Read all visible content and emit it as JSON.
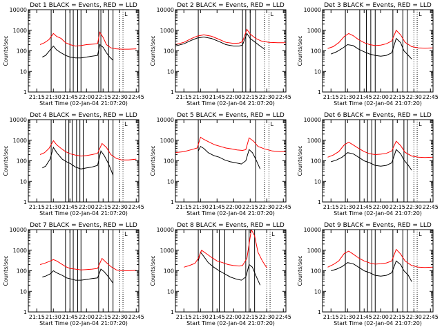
{
  "shared": {
    "xlabel": "Start Time (02-Jan-04 21:07:20)",
    "ylabel": "Counts/sec",
    "x_ticks": [
      "21:15",
      "21:30",
      "21:45",
      "22:00",
      "22:15",
      "22:30",
      "22:45"
    ],
    "y_ticks": [
      "1",
      "10",
      "100",
      "1000",
      "10000"
    ],
    "ylim": [
      1,
      10000
    ],
    "y_scale": "log",
    "xlim": [
      "21:07:20",
      "22:47:20"
    ],
    "marker_label": "L",
    "colors": {
      "events": "#000000",
      "lld": "#ff0000",
      "frame": "#000000"
    }
  },
  "chart_data": [
    {
      "type": "line",
      "title": "Det 1 BLACK = Events, RED = LLD",
      "dashed_markers": [
        "22:30",
        "22:33"
      ],
      "solid_markers": [
        "21:28",
        "21:41",
        "21:45",
        "21:48",
        "21:52",
        "21:55",
        "22:11",
        "22:13",
        "22:20",
        "22:24"
      ],
      "series": [
        {
          "key": "events",
          "x": [
            "21:20",
            "21:23",
            "21:27",
            "21:30",
            "21:33",
            "21:37",
            "21:41",
            "21:45",
            "21:50",
            "21:55",
            "22:00",
            "22:05",
            "22:10",
            "22:12",
            "22:15",
            "22:18",
            "22:21",
            "22:24"
          ],
          "values": [
            50,
            60,
            110,
            170,
            110,
            80,
            60,
            50,
            45,
            45,
            50,
            55,
            60,
            200,
            150,
            80,
            50,
            35
          ]
        },
        {
          "key": "lld",
          "x": [
            "21:18",
            "21:22",
            "21:26",
            "21:30",
            "21:33",
            "21:37",
            "21:41",
            "21:45",
            "21:50",
            "21:55",
            "22:00",
            "22:05",
            "22:10",
            "22:12",
            "22:15",
            "22:18",
            "22:22",
            "22:27",
            "22:32",
            "22:38",
            "22:45"
          ],
          "values": [
            200,
            250,
            350,
            700,
            500,
            400,
            250,
            200,
            170,
            180,
            200,
            210,
            220,
            800,
            450,
            200,
            140,
            125,
            120,
            120,
            125
          ]
        }
      ]
    },
    {
      "type": "line",
      "title": "Det 2 BLACK = Events, RED = LLD",
      "dashed_markers": [
        "22:28",
        "22:32"
      ],
      "solid_markers": [
        "21:28",
        "22:08",
        "22:11",
        "22:15",
        "22:20"
      ],
      "series": [
        {
          "key": "events",
          "x": [
            "21:07",
            "21:15",
            "21:22",
            "21:27",
            "21:33",
            "21:40",
            "21:47",
            "21:53",
            "22:00",
            "22:05",
            "22:08",
            "22:12",
            "22:15",
            "22:20",
            "22:24",
            "22:28"
          ],
          "values": [
            170,
            220,
            330,
            420,
            470,
            400,
            280,
            200,
            170,
            170,
            190,
            700,
            400,
            250,
            170,
            120
          ]
        },
        {
          "key": "lld",
          "x": [
            "21:07",
            "21:15",
            "21:22",
            "21:27",
            "21:33",
            "21:40",
            "21:47",
            "21:53",
            "22:00",
            "22:05",
            "22:08",
            "22:12",
            "22:15",
            "22:20",
            "22:25",
            "22:32",
            "22:40",
            "22:47"
          ],
          "values": [
            200,
            260,
            400,
            520,
            600,
            510,
            360,
            260,
            230,
            240,
            280,
            1100,
            650,
            400,
            300,
            260,
            250,
            250
          ]
        }
      ]
    },
    {
      "type": "line",
      "title": "Det 3 BLACK = Events, RED = LLD",
      "dashed_markers": [
        "22:30",
        "22:33"
      ],
      "solid_markers": [
        "21:28",
        "21:41",
        "21:47",
        "21:51",
        "21:55",
        "22:11",
        "22:20",
        "22:24"
      ],
      "series": [
        {
          "key": "events",
          "x": [
            "21:15",
            "21:20",
            "21:25",
            "21:30",
            "21:35",
            "21:40",
            "21:45",
            "21:50",
            "21:55",
            "22:00",
            "22:05",
            "22:10",
            "22:14",
            "22:18",
            "22:21",
            "22:25",
            "22:28"
          ],
          "values": [
            70,
            90,
            130,
            200,
            180,
            120,
            90,
            70,
            60,
            55,
            60,
            80,
            400,
            250,
            100,
            60,
            40
          ]
        },
        {
          "key": "lld",
          "x": [
            "21:12",
            "21:17",
            "21:22",
            "21:27",
            "21:31",
            "21:35",
            "21:40",
            "21:45",
            "21:50",
            "21:55",
            "22:00",
            "22:05",
            "22:10",
            "22:14",
            "22:18",
            "22:22",
            "22:28",
            "22:34",
            "22:40",
            "22:47"
          ],
          "values": [
            130,
            160,
            250,
            500,
            700,
            550,
            350,
            250,
            200,
            180,
            190,
            220,
            300,
            1000,
            600,
            260,
            160,
            140,
            135,
            140
          ]
        }
      ]
    },
    {
      "type": "line",
      "title": "Det 4 BLACK = Events, RED = LLD",
      "dashed_markers": [
        "22:30",
        "22:33"
      ],
      "solid_markers": [
        "21:28",
        "21:41",
        "21:44",
        "21:47",
        "21:51",
        "21:54",
        "21:57",
        "22:11",
        "22:20",
        "22:24"
      ],
      "series": [
        {
          "key": "events",
          "x": [
            "21:20",
            "21:23",
            "21:27",
            "21:30",
            "21:33",
            "21:38",
            "21:42",
            "21:46",
            "21:50",
            "21:55",
            "22:00",
            "22:05",
            "22:10",
            "22:13",
            "22:16",
            "22:20",
            "22:24"
          ],
          "values": [
            45,
            55,
            120,
            450,
            250,
            120,
            90,
            70,
            50,
            40,
            45,
            50,
            60,
            300,
            180,
            70,
            20
          ]
        },
        {
          "key": "lld",
          "x": [
            "21:18",
            "21:22",
            "21:26",
            "21:30",
            "21:33",
            "21:37",
            "21:41",
            "21:45",
            "21:50",
            "21:55",
            "22:00",
            "22:05",
            "22:10",
            "22:14",
            "22:18",
            "22:22",
            "22:27",
            "22:32",
            "22:38",
            "22:45"
          ],
          "values": [
            200,
            250,
            400,
            950,
            600,
            400,
            280,
            220,
            190,
            170,
            180,
            200,
            230,
            700,
            450,
            200,
            130,
            110,
            110,
            120
          ]
        }
      ]
    },
    {
      "type": "line",
      "title": "Det 5 BLACK = Events, RED = LLD",
      "dashed_markers": [
        "22:28",
        "22:32"
      ],
      "solid_markers": [
        "21:28",
        "22:20"
      ],
      "series": [
        {
          "key": "events",
          "x": [
            "21:28",
            "21:30",
            "21:33",
            "21:37",
            "21:42",
            "21:47",
            "21:52",
            "21:57",
            "22:02",
            "22:07",
            "22:11",
            "22:14",
            "22:17",
            "22:20",
            "22:24"
          ],
          "values": [
            300,
            500,
            400,
            250,
            180,
            150,
            110,
            90,
            80,
            70,
            100,
            350,
            250,
            120,
            40
          ]
        },
        {
          "key": "lld",
          "x": [
            "21:07",
            "21:15",
            "21:22",
            "21:27",
            "21:30",
            "21:33",
            "21:38",
            "21:43",
            "21:48",
            "21:53",
            "21:58",
            "22:03",
            "22:08",
            "22:11",
            "22:14",
            "22:18",
            "22:22",
            "22:28",
            "22:35",
            "22:42",
            "22:47"
          ],
          "values": [
            250,
            280,
            350,
            420,
            1400,
            1100,
            800,
            600,
            500,
            420,
            380,
            340,
            320,
            350,
            1300,
            900,
            500,
            380,
            300,
            280,
            280
          ]
        }
      ]
    },
    {
      "type": "line",
      "title": "Det 6 BLACK = Events, RED = LLD",
      "dashed_markers": [
        "22:30",
        "22:33"
      ],
      "solid_markers": [
        "21:28",
        "21:41",
        "21:48",
        "21:52",
        "21:55",
        "22:11",
        "22:21",
        "22:24"
      ],
      "series": [
        {
          "key": "events",
          "x": [
            "21:15",
            "21:20",
            "21:25",
            "21:30",
            "21:35",
            "21:40",
            "21:45",
            "21:50",
            "21:55",
            "22:00",
            "22:05",
            "22:10",
            "22:14",
            "22:18",
            "22:21",
            "22:25",
            "22:28"
          ],
          "values": [
            90,
            110,
            150,
            250,
            220,
            150,
            100,
            80,
            60,
            55,
            60,
            80,
            350,
            220,
            110,
            60,
            35
          ]
        },
        {
          "key": "lld",
          "x": [
            "21:12",
            "21:17",
            "21:22",
            "21:27",
            "21:31",
            "21:35",
            "21:40",
            "21:45",
            "21:50",
            "21:55",
            "22:00",
            "22:05",
            "22:10",
            "22:14",
            "22:18",
            "22:22",
            "22:28",
            "22:34",
            "22:40",
            "22:47"
          ],
          "values": [
            150,
            190,
            280,
            600,
            800,
            600,
            400,
            280,
            220,
            200,
            210,
            230,
            300,
            900,
            550,
            260,
            170,
            150,
            145,
            150
          ]
        }
      ]
    },
    {
      "type": "line",
      "title": "Det 7 BLACK = Events, RED = LLD",
      "dashed_markers": [
        "22:30",
        "22:33"
      ],
      "solid_markers": [
        "21:28",
        "21:41",
        "21:45",
        "21:48",
        "21:52",
        "21:55",
        "22:11",
        "22:20",
        "22:24"
      ],
      "series": [
        {
          "key": "events",
          "x": [
            "21:20",
            "21:23",
            "21:27",
            "21:30",
            "21:33",
            "21:38",
            "21:42",
            "21:46",
            "21:50",
            "21:55",
            "22:00",
            "22:05",
            "22:10",
            "22:13",
            "22:16",
            "22:20",
            "22:24"
          ],
          "values": [
            50,
            55,
            70,
            100,
            80,
            60,
            45,
            40,
            35,
            35,
            38,
            42,
            45,
            120,
            90,
            50,
            25
          ]
        },
        {
          "key": "lld",
          "x": [
            "21:18",
            "21:22",
            "21:26",
            "21:30",
            "21:33",
            "21:37",
            "21:41",
            "21:45",
            "21:50",
            "21:55",
            "22:00",
            "22:05",
            "22:10",
            "22:14",
            "22:18",
            "22:22",
            "22:27",
            "22:32",
            "22:38",
            "22:45"
          ],
          "values": [
            200,
            230,
            280,
            350,
            300,
            220,
            160,
            130,
            120,
            110,
            115,
            120,
            130,
            400,
            250,
            160,
            110,
            100,
            100,
            105
          ]
        }
      ]
    },
    {
      "type": "line",
      "title": "Det 8 BLACK = Events, RED = LLD",
      "dashed_markers": [
        "22:30",
        "22:33"
      ],
      "solid_markers": [
        "21:28",
        "21:41",
        "21:47",
        "21:52",
        "22:11",
        "22:14",
        "22:19"
      ],
      "series": [
        {
          "key": "events",
          "x": [
            "21:28",
            "21:30",
            "21:33",
            "21:37",
            "21:42",
            "21:47",
            "21:52",
            "21:57",
            "22:02",
            "22:07",
            "22:11",
            "22:14",
            "22:17",
            "22:20",
            "22:24"
          ],
          "values": [
            300,
            800,
            500,
            250,
            150,
            100,
            70,
            50,
            40,
            35,
            50,
            200,
            150,
            60,
            20
          ]
        },
        {
          "key": "lld",
          "x": [
            "21:15",
            "21:20",
            "21:25",
            "21:28",
            "21:31",
            "21:35",
            "21:40",
            "21:45",
            "21:50",
            "21:55",
            "22:00",
            "22:05",
            "22:08",
            "22:12",
            "22:16",
            "22:19",
            "22:22",
            "22:26",
            "22:30"
          ],
          "values": [
            150,
            180,
            230,
            400,
            1000,
            700,
            450,
            300,
            250,
            200,
            180,
            170,
            180,
            400,
            10000,
            5000,
            800,
            300,
            140
          ]
        }
      ]
    },
    {
      "type": "line",
      "title": "Det 9 BLACK = Events, RED = LLD",
      "dashed_markers": [
        "22:30",
        "22:33"
      ],
      "solid_markers": [
        "21:28",
        "21:41",
        "21:48",
        "21:52",
        "21:55",
        "22:11",
        "22:20",
        "22:24"
      ],
      "series": [
        {
          "key": "events",
          "x": [
            "21:15",
            "21:20",
            "21:25",
            "21:30",
            "21:35",
            "21:40",
            "21:45",
            "21:50",
            "21:55",
            "22:00",
            "22:05",
            "22:10",
            "22:14",
            "22:18",
            "22:21",
            "22:25",
            "22:28"
          ],
          "values": [
            100,
            120,
            160,
            250,
            220,
            150,
            100,
            80,
            60,
            55,
            60,
            80,
            300,
            200,
            100,
            60,
            30
          ]
        },
        {
          "key": "lld",
          "x": [
            "21:12",
            "21:17",
            "21:22",
            "21:27",
            "21:31",
            "21:35",
            "21:40",
            "21:45",
            "21:50",
            "21:55",
            "22:00",
            "22:05",
            "22:10",
            "22:14",
            "22:18",
            "22:22",
            "22:28",
            "22:34",
            "22:40",
            "22:47"
          ],
          "values": [
            150,
            200,
            300,
            700,
            900,
            650,
            420,
            300,
            240,
            210,
            220,
            240,
            300,
            1100,
            650,
            300,
            180,
            150,
            145,
            150
          ]
        }
      ]
    }
  ]
}
